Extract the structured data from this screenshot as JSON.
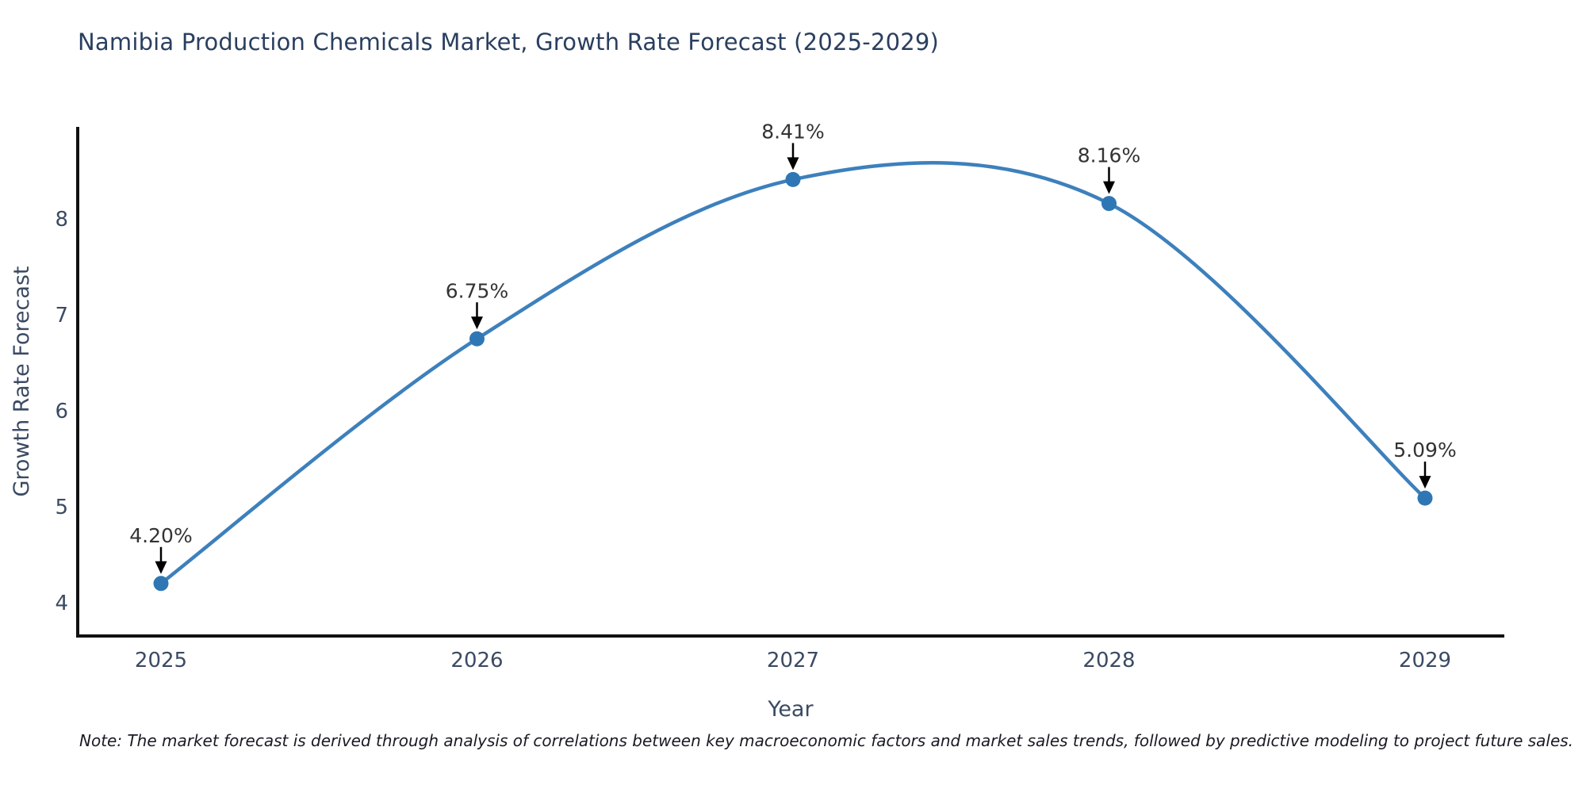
{
  "page": {
    "note": "Note: The market forecast is derived through analysis of correlations between key macroeconomic factors and market sales trends, followed by predictive modeling to project future sales."
  },
  "chart_data": {
    "type": "line",
    "title": "Namibia Production Chemicals Market, Growth Rate Forecast (2025-2029)",
    "xlabel": "Year",
    "ylabel": "Growth Rate Forecast",
    "categories": [
      "2025",
      "2026",
      "2027",
      "2028",
      "2029"
    ],
    "series": [
      {
        "name": "Growth Rate Forecast",
        "values": [
          4.2,
          6.75,
          8.41,
          8.16,
          5.09
        ],
        "point_labels": [
          "4.20%",
          "6.75%",
          "8.41%",
          "8.16%",
          "5.09%"
        ]
      }
    ],
    "yticks": [
      4,
      5,
      6,
      7,
      8
    ],
    "ylim": [
      3.65,
      8.95
    ],
    "grid": false,
    "legend": "none",
    "curve": "spline",
    "annotations": "value labels with down arrows above each point",
    "colors": {
      "line": "#3d80bc",
      "marker": "#2f77b4",
      "arrow": "#000000",
      "annotation_text": "#333333",
      "axis_spine": "#111111",
      "tick_text": "#3b4a63",
      "title_text": "#2a3f5f"
    }
  }
}
